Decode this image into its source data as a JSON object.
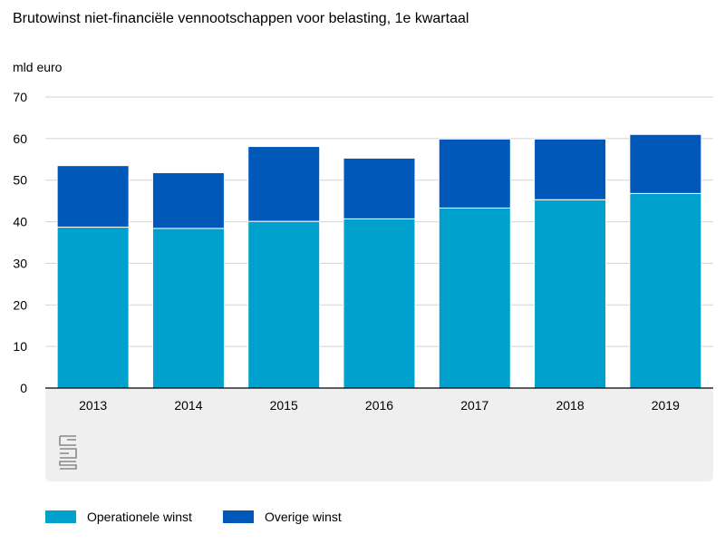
{
  "chart_data": {
    "type": "bar",
    "stacked": true,
    "title": "Brutowinst niet-financiële vennootschappen voor belasting, 1e kwartaal",
    "ylabel": "mld euro",
    "xlabel": "",
    "categories": [
      "2013",
      "2014",
      "2015",
      "2016",
      "2017",
      "2018",
      "2019"
    ],
    "series": [
      {
        "name": "Operationele winst",
        "color": "#00A1CD",
        "values": [
          38.7,
          38.4,
          40.1,
          40.7,
          43.3,
          45.3,
          46.8
        ]
      },
      {
        "name": "Overige winst",
        "color": "#0058B8",
        "values": [
          14.8,
          13.4,
          18.0,
          14.6,
          16.6,
          14.6,
          14.2
        ]
      }
    ],
    "yticks": [
      "0",
      "10",
      "20",
      "30",
      "40",
      "50",
      "60",
      "70"
    ],
    "ylim": [
      0,
      70
    ],
    "grid": true,
    "legend_position": "bottom"
  },
  "logo": {
    "icon": "cbs-logo-icon",
    "text": "cbs"
  }
}
